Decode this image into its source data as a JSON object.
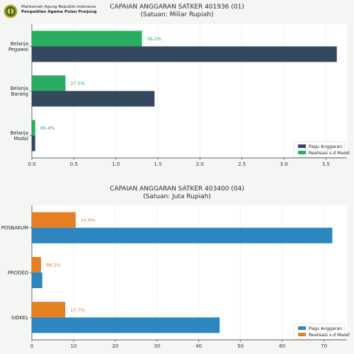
{
  "header": {
    "org_line1": "Mahkamah Agung Republik Indonesia",
    "org_line2": "Pengadilan Agama Pulau Punjung"
  },
  "colors": {
    "pagu_top": "#34495e",
    "realisasi_top": "#27ae60",
    "pagu_bottom": "#2e86c1",
    "realisasi_bottom": "#e67e22"
  },
  "chart_data": [
    {
      "type": "bar",
      "orientation": "horizontal",
      "title": "CAPAIAN ANGGARAN SATKER 401936 (01)",
      "subtitle": "(Satuan: Miliar Rupiah)",
      "categories": [
        "Belanja\nPegawai",
        "Belanja\nBarang",
        "Belanja\nModal"
      ],
      "series": [
        {
          "name": "Pagu Anggaran",
          "values": [
            3.63,
            1.46,
            0.04
          ]
        },
        {
          "name": "Realisasi s.d Maret",
          "values": [
            1.31,
            0.4,
            0.04
          ]
        }
      ],
      "data_labels": [
        "36.2%",
        "27.5%",
        "99.4%"
      ],
      "xlim": [
        0,
        3.75
      ],
      "xticks": [
        "0.0",
        "0.5",
        "1.0",
        "1.5",
        "2.0",
        "2.5",
        "3.0",
        "3.5"
      ],
      "legend": "bottom-right",
      "grid": true
    },
    {
      "type": "bar",
      "orientation": "horizontal",
      "title": "CAPAIAN ANGGARAN SATKER 403400 (04)",
      "subtitle": "(Satuan: Juta Rupiah)",
      "categories": [
        "POSBAKUM",
        "PRODEO",
        "SIDKEL"
      ],
      "series": [
        {
          "name": "Pagu Anggaran",
          "values": [
            72,
            2.5,
            45
          ]
        },
        {
          "name": "Realisasi s.d Maret",
          "values": [
            10.5,
            2.2,
            8
          ]
        }
      ],
      "data_labels": [
        "14.6%",
        "88.2%",
        "17.7%"
      ],
      "xlim": [
        0,
        75.5
      ],
      "xticks": [
        "0",
        "10",
        "20",
        "30",
        "40",
        "50",
        "60",
        "70"
      ],
      "legend": "bottom-right",
      "grid": true
    }
  ]
}
